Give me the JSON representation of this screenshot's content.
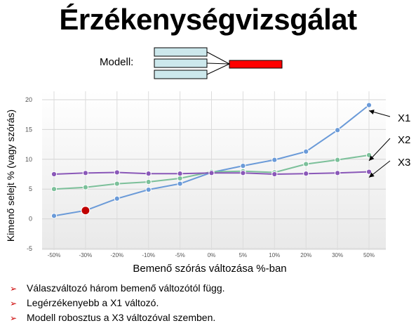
{
  "title": "Érzékenységvizsgálat",
  "model": {
    "label": "Modell:"
  },
  "colors": {
    "X1": "#6a9ad8",
    "X2": "#7cc09a",
    "X3": "#8a58b8",
    "highlight": "#c00000",
    "output_box": "#ff0000",
    "input_box": "#cce8ec"
  },
  "chart_data": {
    "type": "line",
    "categories": [
      "-50%",
      "-30%",
      "-20%",
      "-10%",
      "-5%",
      "0%",
      "5%",
      "10%",
      "20%",
      "30%",
      "50%"
    ],
    "series": [
      {
        "name": "X1",
        "values": [
          0.5,
          1.4,
          3.4,
          4.9,
          5.9,
          7.8,
          8.9,
          9.9,
          11.3,
          14.9,
          19.1
        ]
      },
      {
        "name": "X2",
        "values": [
          5.0,
          5.3,
          5.9,
          6.2,
          6.8,
          7.9,
          8.0,
          7.8,
          9.2,
          9.9,
          10.7
        ]
      },
      {
        "name": "X3",
        "values": [
          7.5,
          7.7,
          7.8,
          7.6,
          7.6,
          7.7,
          7.7,
          7.5,
          7.6,
          7.7,
          7.9
        ]
      }
    ],
    "highlighted_point": {
      "series": "X1",
      "category": "-30%"
    },
    "ylim": [
      -5,
      20
    ],
    "yticks": [
      -5,
      0,
      5,
      10,
      15,
      20
    ],
    "xlabel": "Bemenő szórás változása %-ban",
    "ylabel": "Kimenő selejt % (vagy szórás)",
    "grid": true,
    "legend": "right, arrow-annotated labels"
  },
  "bullets": [
    "Válaszváltozó három bemenő változótól függ.",
    "Legérzékenyebb a X1 változó.",
    "Modell robosztus a X3 változóval szemben."
  ]
}
